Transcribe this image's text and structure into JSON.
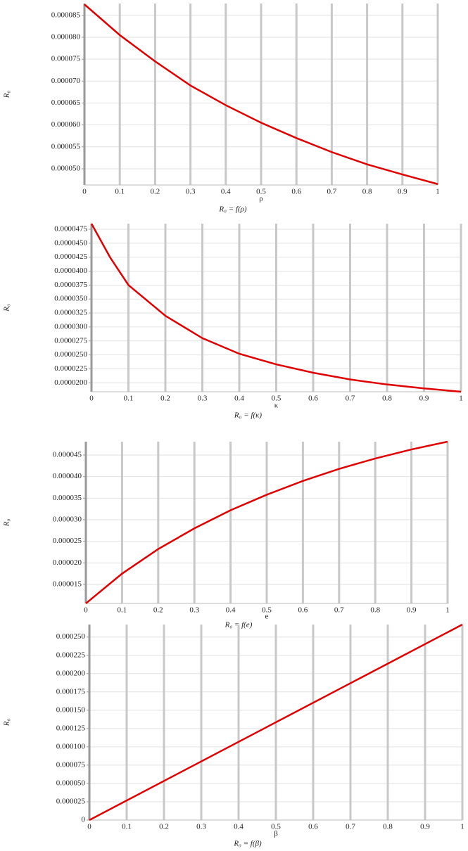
{
  "chart_data": [
    {
      "type": "line",
      "ylabel": "R₀",
      "xlabel": "ρ",
      "caption": "R₀ = f(ρ)",
      "color": "#e00000",
      "grid": true,
      "x": [
        0,
        0.1,
        0.2,
        0.3,
        0.4,
        0.5,
        0.6,
        0.7,
        0.8,
        0.9,
        1
      ],
      "values": [
        8.75e-05,
        8.05e-05,
        7.45e-05,
        6.9e-05,
        6.45e-05,
        6.05e-05,
        5.7e-05,
        5.38e-05,
        5.1e-05,
        4.87e-05,
        4.65e-05
      ],
      "xlim": [
        0,
        1
      ],
      "xticks": [
        0,
        0.1,
        0.2,
        0.3,
        0.4,
        0.5,
        0.6,
        0.7,
        0.8,
        0.9,
        1
      ],
      "ylim": [
        4.63e-05,
        8.77e-05
      ],
      "yticks": [
        {
          "value": 5e-05,
          "label": "0.000050"
        },
        {
          "value": 5.5e-05,
          "label": "0.000055"
        },
        {
          "value": 6e-05,
          "label": "0.000060"
        },
        {
          "value": 6.5e-05,
          "label": "0.000065"
        },
        {
          "value": 7e-05,
          "label": "0.000070"
        },
        {
          "value": 7.5e-05,
          "label": "0.000075"
        },
        {
          "value": 8e-05,
          "label": "0.000080"
        },
        {
          "value": 8.5e-05,
          "label": "0.000085"
        }
      ]
    },
    {
      "type": "line",
      "ylabel": "R₀",
      "xlabel": "κ",
      "caption": "R₀ = f(κ)",
      "color": "#e00000",
      "grid": true,
      "x": [
        0,
        0.05,
        0.1,
        0.2,
        0.3,
        0.4,
        0.5,
        0.6,
        0.7,
        0.8,
        0.9,
        1
      ],
      "values": [
        4.85e-05,
        4.25e-05,
        3.75e-05,
        3.2e-05,
        2.8e-05,
        2.52e-05,
        2.33e-05,
        2.18e-05,
        2.06e-05,
        1.97e-05,
        1.9e-05,
        1.84e-05
      ],
      "xlim": [
        0,
        1
      ],
      "xticks": [
        0,
        0.1,
        0.2,
        0.3,
        0.4,
        0.5,
        0.6,
        0.7,
        0.8,
        0.9,
        1
      ],
      "ylim": [
        1.84e-05,
        4.85e-05
      ],
      "yticks": [
        {
          "value": 2e-05,
          "label": "0.0000200"
        },
        {
          "value": 2.25e-05,
          "label": "0.0000225"
        },
        {
          "value": 2.5e-05,
          "label": "0.0000250"
        },
        {
          "value": 2.75e-05,
          "label": "0.0000275"
        },
        {
          "value": 3e-05,
          "label": "0.0000300"
        },
        {
          "value": 3.25e-05,
          "label": "0.0000325"
        },
        {
          "value": 3.5e-05,
          "label": "0.0000350"
        },
        {
          "value": 3.75e-05,
          "label": "0.0000375"
        },
        {
          "value": 4e-05,
          "label": "0.0000400"
        },
        {
          "value": 4.25e-05,
          "label": "0.0000425"
        },
        {
          "value": 4.5e-05,
          "label": "0.0000450"
        },
        {
          "value": 4.75e-05,
          "label": "0.0000475"
        }
      ]
    },
    {
      "type": "line",
      "ylabel": "R₀",
      "xlabel": "e",
      "caption": "R₀ = f(e)",
      "color": "#e00000",
      "grid": true,
      "x": [
        0,
        0.1,
        0.2,
        0.3,
        0.4,
        0.5,
        0.6,
        0.7,
        0.8,
        0.9,
        1
      ],
      "values": [
        1.06e-05,
        1.75e-05,
        2.32e-05,
        2.8e-05,
        3.22e-05,
        3.58e-05,
        3.9e-05,
        4.18e-05,
        4.42e-05,
        4.63e-05,
        4.81e-05
      ],
      "xlim": [
        0,
        1
      ],
      "xticks": [
        0,
        0.1,
        0.2,
        0.3,
        0.4,
        0.5,
        0.6,
        0.7,
        0.8,
        0.9,
        1
      ],
      "ylim": [
        1.06e-05,
        4.81e-05
      ],
      "yticks": [
        {
          "value": 1.5e-05,
          "label": "0.000015"
        },
        {
          "value": 2e-05,
          "label": "0.000020"
        },
        {
          "value": 2.5e-05,
          "label": "0.000025"
        },
        {
          "value": 3e-05,
          "label": "0.000030"
        },
        {
          "value": 3.5e-05,
          "label": "0.000035"
        },
        {
          "value": 4e-05,
          "label": "0.000040"
        },
        {
          "value": 4.5e-05,
          "label": "0.000045"
        }
      ]
    },
    {
      "type": "line",
      "ylabel": "R₀",
      "xlabel": "β",
      "caption": "R₀ = f(β)",
      "color": "#e00000",
      "grid": true,
      "x": [
        0,
        1
      ],
      "values": [
        0,
        0.000267
      ],
      "xlim": [
        0,
        1
      ],
      "xticks": [
        0,
        0.1,
        0.2,
        0.3,
        0.4,
        0.5,
        0.6,
        0.7,
        0.8,
        0.9,
        1
      ],
      "ylim": [
        0,
        0.000267
      ],
      "yticks": [
        0,
        {
          "value": 2.5e-05,
          "label": "0.000025"
        },
        {
          "value": 5e-05,
          "label": "0.000050"
        },
        {
          "value": 7.5e-05,
          "label": "0.000075"
        },
        {
          "value": 0.0001,
          "label": "0.000100"
        },
        {
          "value": 0.000125,
          "label": "0.000125"
        },
        {
          "value": 0.00015,
          "label": "0.000150"
        },
        {
          "value": 0.000175,
          "label": "0.000175"
        },
        {
          "value": 0.0002,
          "label": "0.000200"
        },
        {
          "value": 0.000225,
          "label": "0.000225"
        },
        {
          "value": 0.00025,
          "label": "0.000250"
        }
      ]
    }
  ]
}
